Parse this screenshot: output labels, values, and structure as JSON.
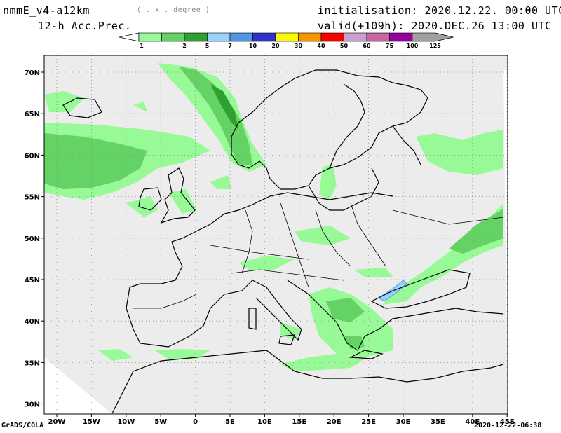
{
  "header": {
    "model": "nmmE_v4-a12km",
    "units": "( . x . degree )",
    "product": "12-h Acc.Prec.",
    "init": "initialisation: 2020.12.22.  00:00 UTC",
    "valid": "valid(+109h): 2020.DEC.26 13:00 UTC"
  },
  "colorbar": {
    "labels": [
      "1",
      "2",
      "5",
      "7",
      "10",
      "20",
      "30",
      "40",
      "50",
      "60",
      "75",
      "100",
      "125"
    ],
    "colors": [
      "#98fa96",
      "#64d264",
      "#2ea02e",
      "#96d2fa",
      "#5096e6",
      "#3232c8",
      "#fafa00",
      "#fa9600",
      "#fa0000",
      "#c8a0d2",
      "#c864a0",
      "#9600a0",
      "#a0a0a0"
    ]
  },
  "map": {
    "x_ticks": [
      "20W",
      "15W",
      "10W",
      "5W",
      "0",
      "5E",
      "10E",
      "15E",
      "20E",
      "25E",
      "30E",
      "35E",
      "40E",
      "45E"
    ],
    "y_ticks": [
      "70N",
      "65N",
      "60N",
      "55N",
      "50N",
      "45N",
      "40N",
      "35N",
      "30N"
    ],
    "colors": {
      "background": "#ececec",
      "coast": "#000000",
      "grid": "#909090"
    }
  },
  "footer": {
    "left": "GrADS/COLA",
    "right": "2020-12-22-06:38"
  }
}
